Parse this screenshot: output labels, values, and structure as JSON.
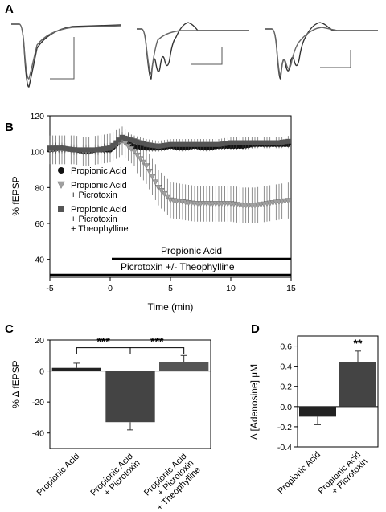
{
  "panels": {
    "a": "A",
    "b": "B",
    "c": "C",
    "d": "D"
  },
  "chart_data": [
    {
      "type": "line",
      "panel": "A",
      "description_visible": "three example fEPSP traces with scale bars",
      "traces": [
        {
          "pair": "left"
        },
        {
          "pair": "middle"
        },
        {
          "pair": "right"
        }
      ]
    },
    {
      "type": "scatter",
      "panel": "B",
      "xlabel": "Time (min)",
      "ylabel": "% fEPSP",
      "xlim": [
        -5,
        15
      ],
      "ylim": [
        30,
        120
      ],
      "xticks": [
        "-5",
        "0",
        "5",
        "10",
        "15"
      ],
      "yticks": [
        "40",
        "60",
        "80",
        "100",
        "120"
      ],
      "bars": {
        "propionic_acid_label": "Propionic Acid",
        "picrotoxin_label": "Picrotoxin +/- Theophylline"
      },
      "series": [
        {
          "legend": [
            "Propionic Acid"
          ],
          "marker": "circle",
          "color": "#111111",
          "x": [
            -5,
            -4,
            -3,
            -2,
            -1,
            0,
            1,
            2,
            3,
            4,
            5,
            6,
            7,
            8,
            9,
            10,
            11,
            12,
            13,
            14,
            15
          ],
          "y": [
            101,
            102,
            101,
            100,
            101,
            101,
            107,
            103,
            102,
            102,
            103,
            102,
            103,
            102,
            103,
            103,
            103,
            104,
            104,
            104,
            104
          ]
        },
        {
          "legend": [
            "Propionic Acid",
            "+ Picrotoxin"
          ],
          "marker": "triangle",
          "color": "#a0a0a0",
          "x": [
            -5,
            -4,
            -3,
            -2,
            -1,
            0,
            1,
            2,
            3,
            4,
            5,
            6,
            7,
            8,
            9,
            10,
            11,
            12,
            13,
            14,
            15
          ],
          "y": [
            101,
            101,
            101,
            100,
            101,
            102,
            106,
            100,
            92,
            80,
            73,
            72,
            71,
            71,
            71,
            71,
            70,
            70,
            71,
            72,
            73
          ]
        },
        {
          "legend": [
            "Propionic Acid",
            "+ Picrotoxin",
            "+ Theophylline"
          ],
          "marker": "square",
          "color": "#555555",
          "x": [
            -5,
            -4,
            -3,
            -2,
            -1,
            0,
            1,
            2,
            3,
            4,
            5,
            6,
            7,
            8,
            9,
            10,
            11,
            12,
            13,
            14,
            15
          ],
          "y": [
            102,
            102,
            101,
            101,
            101,
            102,
            108,
            106,
            104,
            103,
            104,
            104,
            104,
            104,
            104,
            105,
            105,
            105,
            105,
            105,
            106
          ]
        }
      ]
    },
    {
      "type": "bar",
      "panel": "C",
      "ylabel": "% Δ fEPSP",
      "ylim": [
        -50,
        20
      ],
      "yticks": [
        "20",
        "0",
        "-20",
        "-40"
      ],
      "categories": [
        [
          "Propionic Acid"
        ],
        [
          "Propionic Acid",
          "+ Picrotoxin"
        ],
        [
          "Propionic Acid",
          "+ Picrotoxin",
          "+ Theophylline"
        ]
      ],
      "values": [
        2,
        -33,
        6
      ],
      "errors": [
        3,
        5,
        4
      ],
      "colors": [
        "#222222",
        "#444444",
        "#555555"
      ],
      "significance": [
        "***",
        "***"
      ]
    },
    {
      "type": "bar",
      "panel": "D",
      "ylabel": "Δ [Adenosine] µM",
      "ylim": [
        -0.4,
        0.7
      ],
      "yticks": [
        "0.6",
        "0.4",
        "0.2",
        "0.0",
        "-0.2",
        "-0.4"
      ],
      "categories": [
        [
          "Propionic Acid"
        ],
        [
          "Propionic Acid",
          "+ Picrotoxin"
        ]
      ],
      "values": [
        -0.1,
        0.44
      ],
      "errors": [
        0.08,
        0.11
      ],
      "colors": [
        "#222222",
        "#444444"
      ],
      "significance": [
        "**"
      ]
    }
  ]
}
